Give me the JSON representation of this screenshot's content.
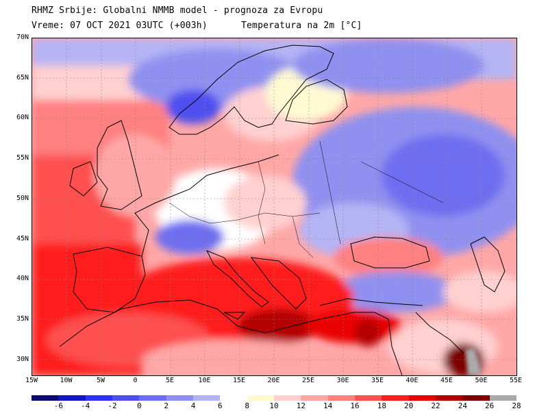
{
  "header": {
    "line1": "RHMZ Srbije: Globalni NMMB model - prognoza za Evropu",
    "line2": "Vreme: 07 OCT 2021 03UTC (+003h)",
    "line3": "Temperatura na 2m [°C]"
  },
  "lat_labels": [
    "70N",
    "65N",
    "60N",
    "55N",
    "50N",
    "45N",
    "40N",
    "35N",
    "30N"
  ],
  "lon_labels": [
    "15W",
    "10W",
    "5W",
    "0",
    "5E",
    "10E",
    "15E",
    "20E",
    "25E",
    "30E",
    "35E",
    "40E",
    "45E",
    "50E",
    "55E"
  ],
  "colorbar": {
    "colors": [
      "#0a0a70",
      "#1414c8",
      "#2f2fff",
      "#4f4ff0",
      "#6e6ef0",
      "#9090f0",
      "#b4b4f5",
      "#ffffff",
      "#fffad2",
      "#ffd0d0",
      "#ffa7a7",
      "#ff8080",
      "#ff5050",
      "#ff1e1e",
      "#eb0000",
      "#b40000",
      "#7d0000",
      "#aaaaaa"
    ],
    "labels": [
      "-6",
      "-4",
      "-2",
      "0",
      "2",
      "4",
      "6",
      "8",
      "10",
      "12",
      "14",
      "16",
      "18",
      "20",
      "22",
      "24",
      "26",
      "28"
    ]
  }
}
